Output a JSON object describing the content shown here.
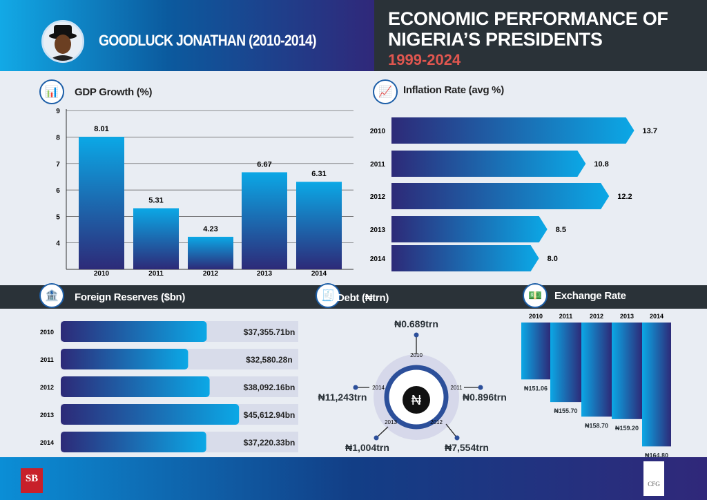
{
  "header": {
    "president": "GOODLUCK JONATHAN (2010-2014)",
    "title_line1": "ECONOMIC PERFORMANCE OF",
    "title_line2": "NIGERIA’S PRESIDENTS",
    "period": "1999-2024"
  },
  "colors": {
    "header_dark": "#2a3238",
    "accent_red": "#e0564f",
    "bar_dark": "#2d2a78",
    "bar_light": "#0ba8e6"
  },
  "logos": {
    "left": "SB MORGEN",
    "right": "THE CFG ADVISORY"
  },
  "chart_data": [
    {
      "type": "bar",
      "title": "GDP Growth (%)",
      "categories": [
        "2010",
        "2011",
        "2012",
        "2013",
        "2014"
      ],
      "values": [
        8.01,
        5.31,
        4.23,
        6.67,
        6.31
      ],
      "yticks": [
        4,
        5,
        6,
        7,
        8,
        9
      ],
      "ylim": [
        3,
        9
      ],
      "grid": true
    },
    {
      "type": "bar",
      "orientation": "horizontal",
      "title": "Inflation Rate (avg %)",
      "categories": [
        "2010",
        "2011",
        "2012",
        "2013",
        "2014"
      ],
      "values": [
        13.7,
        10.8,
        12.2,
        8.5,
        8.0
      ],
      "labels": [
        "13.7",
        "10.8",
        "12.2",
        "8.5",
        "8.0"
      ]
    },
    {
      "type": "bar",
      "orientation": "horizontal",
      "title": "Foreign Reserves  ($bn)",
      "categories": [
        "2010",
        "2011",
        "2012",
        "2013",
        "2014"
      ],
      "values": [
        37355.71,
        32580.28,
        38092.16,
        45612.94,
        37220.33
      ],
      "labels": [
        "$37,355.71bn",
        "$32,580.28n",
        "$38,092.16bn",
        "$45,612.94bn",
        "$37,220.33bn"
      ]
    },
    {
      "type": "pie",
      "title": "Debt (₦trn)",
      "categories": [
        "2010",
        "2011",
        "2012",
        "2013",
        "2014"
      ],
      "labels": [
        "₦0.689trn",
        "₦0.896trn",
        "₦7,554trn",
        "₦1,004trn",
        "₦11,243trn"
      ]
    },
    {
      "type": "bar",
      "title": "Exchange Rate",
      "categories": [
        "2010",
        "2011",
        "2012",
        "2013",
        "2014"
      ],
      "values": [
        151.06,
        155.7,
        158.7,
        159.2,
        164.8
      ],
      "labels": [
        "₦151.06",
        "₦155.70",
        "₦158.70",
        "₦159.20",
        "₦164.80"
      ]
    }
  ]
}
